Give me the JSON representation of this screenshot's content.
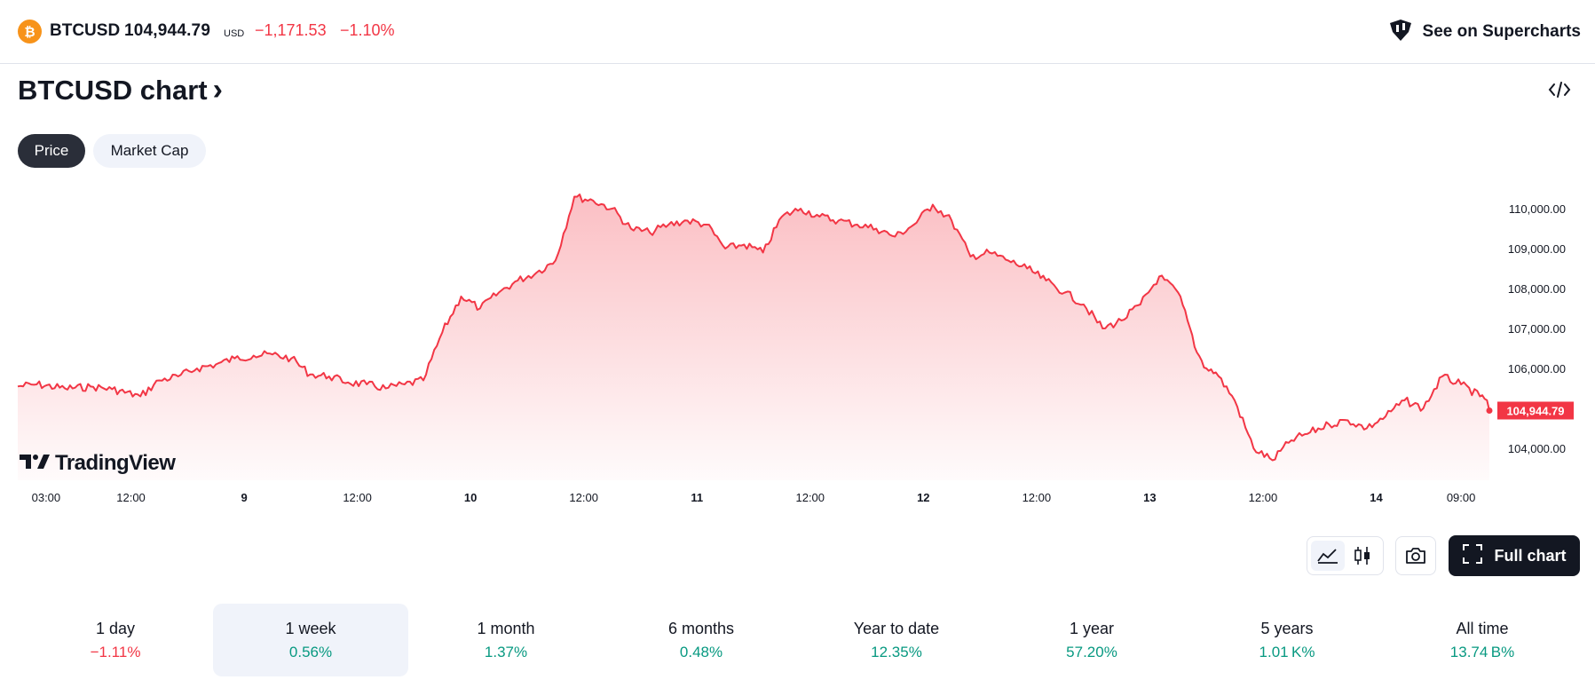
{
  "header": {
    "symbol": "BTCUSD",
    "price": "104,944.79",
    "currency": "USD",
    "change": "−1,171.53",
    "change_pct": "−1.10%",
    "supercharts_label": "See on Supercharts",
    "icon": "bitcoin-icon"
  },
  "title": {
    "text": "BTCUSD chart",
    "chevron": "›"
  },
  "tabs": [
    {
      "label": "Price",
      "active": true
    },
    {
      "label": "Market Cap",
      "active": false
    }
  ],
  "chart_data": {
    "type": "area",
    "price_axis_ticks": [
      "110,000.00",
      "109,000.00",
      "108,000.00",
      "107,000.00",
      "106,000.00",
      "104,000.00"
    ],
    "price_axis_values": [
      110000,
      109000,
      108000,
      107000,
      106000,
      104000
    ],
    "time_axis_ticks": [
      "03:00",
      "12:00",
      "9",
      "12:00",
      "10",
      "12:00",
      "11",
      "12:00",
      "12",
      "12:00",
      "13",
      "12:00",
      "14",
      "09:00"
    ],
    "time_axis_bold": [
      false,
      false,
      true,
      false,
      true,
      false,
      true,
      false,
      true,
      false,
      true,
      false,
      true,
      false
    ],
    "time_axis_hours": [
      3,
      12,
      24,
      36,
      48,
      60,
      72,
      84,
      96,
      108,
      120,
      132,
      144,
      153
    ],
    "last_price_label": "104,944.79",
    "last_price": 104944.79,
    "ylim": [
      103200,
      110400
    ],
    "x_hours": [
      0,
      2,
      5,
      8,
      10,
      13,
      15,
      17,
      19,
      21,
      23,
      25,
      27,
      29,
      31,
      33,
      35,
      37,
      39,
      41,
      43,
      45,
      47,
      49,
      51,
      53,
      55,
      57,
      59,
      61,
      63,
      65,
      67,
      69,
      71,
      73,
      75,
      77,
      79,
      81,
      83,
      85,
      87,
      89,
      91,
      93,
      95,
      97,
      99,
      101,
      103,
      105,
      107,
      109,
      111,
      113,
      115,
      117,
      119,
      121,
      123,
      124,
      125,
      126,
      127,
      129,
      131,
      133,
      135,
      137,
      139,
      141,
      143,
      145,
      147,
      149,
      151,
      153,
      155,
      156
    ],
    "y_values": [
      105550,
      105600,
      105500,
      105540,
      105480,
      105300,
      105700,
      105800,
      106000,
      106100,
      106250,
      106320,
      106350,
      106250,
      105850,
      105800,
      105650,
      105600,
      105500,
      105600,
      105700,
      106900,
      107800,
      107500,
      107900,
      108200,
      108400,
      108700,
      110300,
      110200,
      110000,
      109500,
      109400,
      109600,
      109700,
      109600,
      109000,
      109100,
      108900,
      109800,
      110000,
      109800,
      109700,
      109600,
      109500,
      109300,
      109600,
      110100,
      109700,
      108800,
      108900,
      108700,
      108500,
      108200,
      107900,
      107600,
      107000,
      107200,
      107600,
      108300,
      107900,
      107200,
      106400,
      106000,
      105900,
      105200,
      104000,
      103700,
      104200,
      104400,
      104600,
      104700,
      104500,
      104800,
      105200,
      105000,
      105800,
      105600,
      105300,
      105200
    ],
    "line_color": "#f23645",
    "fill_color": "#f23645",
    "grid": false
  },
  "watermark": {
    "logo_text": "TradingView",
    "icon": "tradingview-logo-icon"
  },
  "tools": {
    "line_chart": "line-chart-icon",
    "candles": "candlestick-icon",
    "snapshot": "camera-icon",
    "full_chart_label": "Full chart",
    "fullscreen": "fullscreen-icon",
    "embed": "code-embed-icon"
  },
  "ranges": [
    {
      "label": "1 day",
      "value": "−1.11%",
      "dir": "neg",
      "selected": false
    },
    {
      "label": "1 week",
      "value": "0.56%",
      "dir": "pos",
      "selected": true
    },
    {
      "label": "1 month",
      "value": "1.37%",
      "dir": "pos",
      "selected": false
    },
    {
      "label": "6 months",
      "value": "0.48%",
      "dir": "pos",
      "selected": false
    },
    {
      "label": "Year to date",
      "value": "12.35%",
      "dir": "pos",
      "selected": false
    },
    {
      "label": "1 year",
      "value": "57.20%",
      "dir": "pos",
      "selected": false
    },
    {
      "label": "5 years",
      "value": "1.01 K%",
      "dir": "pos",
      "selected": false
    },
    {
      "label": "All time",
      "value": "13.74 B%",
      "dir": "pos",
      "selected": false
    }
  ],
  "colors": {
    "accent_down": "#f23645",
    "accent_up": "#089981",
    "dark": "#131722",
    "bitcoin": "#f7931a"
  }
}
